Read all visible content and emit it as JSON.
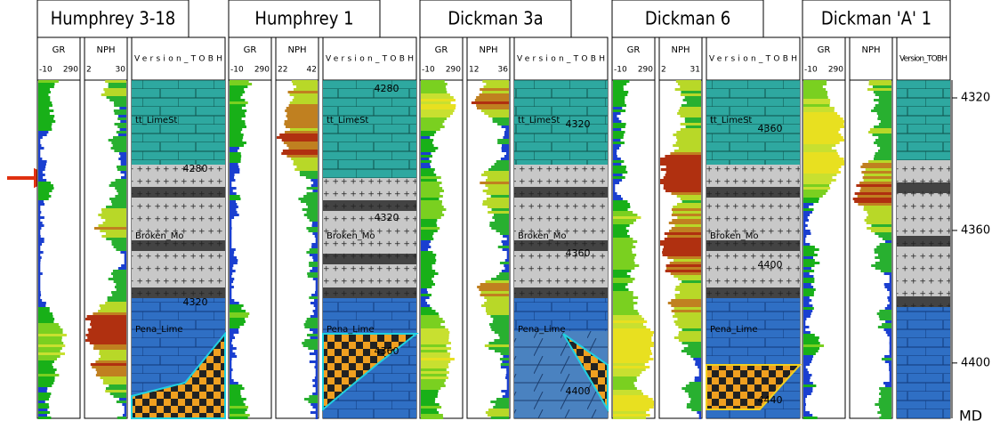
{
  "wells": [
    {
      "name": "Humphrey 3-18",
      "tracks": [
        {
          "name": "GR",
          "min": "-10",
          "max": "290"
        },
        {
          "name": "NPH",
          "min": "2",
          "max": "30"
        },
        {
          "name": "Version_TOBH"
        }
      ],
      "depth_labels": [
        "4280",
        "4320"
      ],
      "formations": [
        "tt_LimeSt",
        "Broken_Mo",
        "Pena_Lime"
      ]
    },
    {
      "name": "Humphrey 1",
      "tracks": [
        {
          "name": "GR",
          "min": "-10",
          "max": "290"
        },
        {
          "name": "NPH",
          "min": "22",
          "max": "42"
        },
        {
          "name": "Version_TOBH"
        }
      ],
      "depth_labels": [
        "4280",
        "4320",
        "4360"
      ],
      "formations": [
        "tt_LimeSt",
        "Broken_Mo",
        "Pena_Lime"
      ]
    },
    {
      "name": "Dickman 3a",
      "tracks": [
        {
          "name": "GR",
          "min": "-10",
          "max": "290"
        },
        {
          "name": "NPH",
          "min": "12",
          "max": "36"
        },
        {
          "name": "Version_TOBH"
        }
      ],
      "depth_labels": [
        "4320",
        "4360",
        "4400"
      ],
      "formations": [
        "tt_LimeSt",
        "Broken_Mo",
        "Pena_Lime"
      ]
    },
    {
      "name": "Dickman 6",
      "tracks": [
        {
          "name": "GR",
          "min": "-10",
          "max": "290"
        },
        {
          "name": "NPH",
          "min": "2",
          "max": "31"
        },
        {
          "name": "Version_TOBH"
        }
      ],
      "depth_labels": [
        "4360",
        "4400",
        "4440"
      ],
      "formations": [
        "tt_LimeSt",
        "Broken_Mo",
        "Pena_Lime"
      ]
    },
    {
      "name": "Dickman 'A' 1",
      "tracks": [
        {
          "name": "GR",
          "min": "-10",
          "max": "290"
        },
        {
          "name": "NPH"
        },
        {
          "name": "Version_TOBH"
        }
      ],
      "depth_labels": [],
      "formations": []
    }
  ],
  "depth_axis": {
    "lim": [
      4315,
      4418
    ],
    "ticks": [
      4320,
      4360,
      4400
    ],
    "unit": "MD"
  }
}
